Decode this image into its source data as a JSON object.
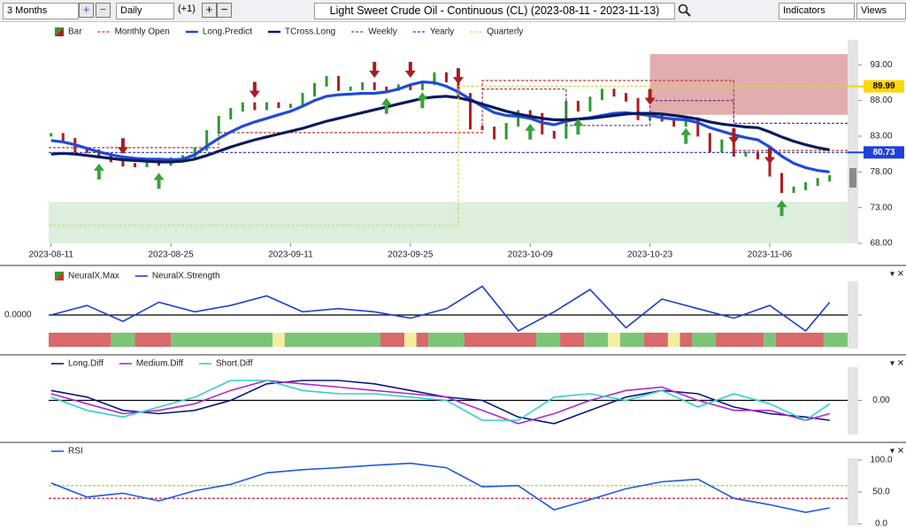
{
  "toolbar": {
    "range": "3 Months",
    "interval": "Daily",
    "offset": "(+1)",
    "title": "Light Sweet Crude Oil - Continuous (CL) (2023-08-11 - 2023-11-13)",
    "indicators": "Indicators",
    "views": "Views"
  },
  "chart_data": [
    {
      "type": "price",
      "ytick_side": "right",
      "grid": false,
      "x": [
        0,
        1,
        2,
        3,
        4,
        5,
        6,
        7,
        8,
        9,
        10,
        11,
        12,
        13,
        14,
        15,
        16,
        17,
        18,
        19,
        20,
        21,
        22,
        23,
        24,
        25,
        26,
        27,
        28,
        29,
        30,
        31,
        32,
        33,
        34,
        35,
        36,
        37,
        38,
        39,
        40,
        41,
        42,
        43,
        44,
        45,
        46,
        47,
        48,
        49,
        50,
        51,
        52,
        53,
        54,
        55,
        56,
        57,
        58,
        59,
        60,
        61,
        62,
        63,
        64,
        65
      ],
      "xlim": [
        -0.2,
        66.5
      ],
      "xticks": [
        {
          "value": 0,
          "label": "2023-08-11"
        },
        {
          "value": 10,
          "label": "2023-08-25"
        },
        {
          "value": 20,
          "label": "2023-09-11"
        },
        {
          "value": 30,
          "label": "2023-09-25"
        },
        {
          "value": 40,
          "label": "2023-10-09"
        },
        {
          "value": 50,
          "label": "2023-10-23"
        },
        {
          "value": 60,
          "label": "2023-11-06"
        }
      ],
      "ylim": [
        68,
        96.5
      ],
      "yticks": [
        {
          "value": 93,
          "label": "93.00"
        },
        {
          "value": 88,
          "label": "88.00"
        },
        {
          "value": 83,
          "label": "83.00"
        },
        {
          "value": 78,
          "label": "78.00"
        },
        {
          "value": 73,
          "label": "73.00"
        },
        {
          "value": 68,
          "label": "68.00"
        }
      ],
      "zones": [
        {
          "x": [
            50,
            66.5
          ],
          "y": [
            86,
            94.5
          ],
          "color": "#c96a6a"
        },
        {
          "x": [
            -0.2,
            66.5
          ],
          "y": [
            68,
            73.8
          ],
          "color": "#bfe0bf"
        }
      ],
      "series": [
        {
          "name": "Bar",
          "style": "bars",
          "up_color": "#2e9a2e",
          "down_color": "#b01c1c",
          "values": [
            83.2,
            82.5,
            81.0,
            80.9,
            80.4,
            79.6,
            79.0,
            78.9,
            79.6,
            79.1,
            79.8,
            80.1,
            81.2,
            83.6,
            85.6,
            86.7,
            87.5,
            86.9,
            87.5,
            87.2,
            87.3,
            88.8,
            90.2,
            91.2,
            89.6,
            89.7,
            90.3,
            89.7,
            89.6,
            90.0,
            89.7,
            90.4,
            91.7,
            90.8,
            88.8,
            84.2,
            84.1,
            82.8,
            84.6,
            86.4,
            86.0,
            83.5,
            82.9,
            87.7,
            86.7,
            88.3,
            89.4,
            88.8,
            88.1,
            85.5,
            85.9,
            85.3,
            84.6,
            85.4,
            83.2,
            81.0,
            82.3,
            80.4,
            80.6,
            80.0,
            77.6,
            75.3,
            75.7,
            76.3,
            76.9,
            77.3
          ]
        },
        {
          "name": "Monthly Open",
          "style": "dashed",
          "color": "#c0392b",
          "x": [
            -0.2,
            14,
            14,
            36,
            36,
            57,
            57,
            66.5
          ],
          "values": [
            81.4,
            81.4,
            83.5,
            83.5,
            90.8,
            90.8,
            81.0,
            81.0
          ]
        },
        {
          "name": "Long.Predict",
          "style": "thick",
          "color": "#1e4bd8",
          "values": [
            82.4,
            82.2,
            81.8,
            81.3,
            80.8,
            80.4,
            80.1,
            79.9,
            79.8,
            79.8,
            79.7,
            79.8,
            80.4,
            81.6,
            82.7,
            83.6,
            84.4,
            85.0,
            85.5,
            86.0,
            86.5,
            87.2,
            88.0,
            88.6,
            88.8,
            88.9,
            89.0,
            89.0,
            89.2,
            89.6,
            90.2,
            90.6,
            90.5,
            90.0,
            89.2,
            88.2,
            87.2,
            86.3,
            85.9,
            85.8,
            85.5,
            84.9,
            84.6,
            85.1,
            85.4,
            85.6,
            85.9,
            86.2,
            86.3,
            86.1,
            85.9,
            85.6,
            85.4,
            85.3,
            84.9,
            84.2,
            83.7,
            83.2,
            82.8,
            82.5,
            81.5,
            80.2,
            79.2,
            78.6,
            78.2,
            78.0
          ]
        },
        {
          "name": "TCross.Long",
          "style": "thick",
          "color": "#0a1a5c",
          "values": [
            80.5,
            80.6,
            80.5,
            80.3,
            80.1,
            79.9,
            79.7,
            79.6,
            79.5,
            79.4,
            79.4,
            79.5,
            79.8,
            80.3,
            80.9,
            81.5,
            82.0,
            82.5,
            82.9,
            83.3,
            83.7,
            84.1,
            84.6,
            85.1,
            85.5,
            85.9,
            86.3,
            86.7,
            87.1,
            87.5,
            87.9,
            88.3,
            88.5,
            88.6,
            88.4,
            88.0,
            87.5,
            87.0,
            86.5,
            86.1,
            85.8,
            85.5,
            85.3,
            85.3,
            85.4,
            85.5,
            85.7,
            85.9,
            86.1,
            86.2,
            86.2,
            86.1,
            85.9,
            85.7,
            85.4,
            85.0,
            84.7,
            84.5,
            84.3,
            84.2,
            83.6,
            82.9,
            82.3,
            81.8,
            81.4,
            81.1
          ]
        },
        {
          "name": "Weekly",
          "style": "dashed",
          "color": "#7b2c7b",
          "x": [
            36,
            43,
            43,
            50,
            50,
            57,
            57,
            66.5
          ],
          "values": [
            89.6,
            89.6,
            84.5,
            84.5,
            88.0,
            88.0,
            84.8,
            84.8
          ]
        },
        {
          "name": "Yearly",
          "style": "dashed",
          "color": "#2233cc",
          "x": [
            -0.2,
            66.5
          ],
          "values": [
            80.73,
            80.73
          ]
        },
        {
          "name": "Quarterly",
          "style": "dashed",
          "color": "#d6d64a",
          "x": [
            -0.2,
            34,
            34,
            66.5
          ],
          "values": [
            70.5,
            70.5,
            89.99,
            89.99
          ]
        }
      ],
      "sell_signals": [
        6,
        17,
        27,
        30,
        34,
        50,
        57,
        60
      ],
      "buy_signals": [
        4,
        9,
        28,
        31,
        40,
        44,
        53,
        61
      ],
      "price_labels": [
        {
          "value": 89.99,
          "color": "#ffd700",
          "text_color": "#000000"
        },
        {
          "value": 80.73,
          "color": "#2040e0",
          "text_color": "#ffffff"
        }
      ]
    },
    {
      "type": "oscillator",
      "ytick_side": "left",
      "grid": true,
      "x": [
        0,
        3,
        6,
        9,
        12,
        15,
        18,
        21,
        24,
        27,
        30,
        33,
        36,
        39,
        42,
        45,
        48,
        51,
        54,
        57,
        60,
        63,
        65
      ],
      "xlim": [
        -0.2,
        66.5
      ],
      "ylim": [
        -1,
        1
      ],
      "yticks": [
        {
          "value": 0,
          "label": "0.0000"
        }
      ],
      "series": [
        {
          "name": "NeuralX.Max",
          "style": "strip",
          "segments": [
            {
              "from": -0.2,
              "to": 5,
              "color": "#d9696b"
            },
            {
              "from": 5,
              "to": 7,
              "color": "#7cc576"
            },
            {
              "from": 7,
              "to": 10,
              "color": "#d9696b"
            },
            {
              "from": 10,
              "to": 18.5,
              "color": "#7cc576"
            },
            {
              "from": 18.5,
              "to": 19.5,
              "color": "#f3eea0"
            },
            {
              "from": 19.5,
              "to": 27.5,
              "color": "#7cc576"
            },
            {
              "from": 27.5,
              "to": 29.5,
              "color": "#d9696b"
            },
            {
              "from": 29.5,
              "to": 30.5,
              "color": "#f3eea0"
            },
            {
              "from": 30.5,
              "to": 31.5,
              "color": "#d9696b"
            },
            {
              "from": 31.5,
              "to": 34.5,
              "color": "#7cc576"
            },
            {
              "from": 34.5,
              "to": 40.5,
              "color": "#d9696b"
            },
            {
              "from": 40.5,
              "to": 42.5,
              "color": "#7cc576"
            },
            {
              "from": 42.5,
              "to": 44.5,
              "color": "#d9696b"
            },
            {
              "from": 44.5,
              "to": 46.5,
              "color": "#7cc576"
            },
            {
              "from": 46.5,
              "to": 47.5,
              "color": "#f3eea0"
            },
            {
              "from": 47.5,
              "to": 49.5,
              "color": "#7cc576"
            },
            {
              "from": 49.5,
              "to": 51.5,
              "color": "#d9696b"
            },
            {
              "from": 51.5,
              "to": 52.5,
              "color": "#f3eea0"
            },
            {
              "from": 52.5,
              "to": 53.5,
              "color": "#d9696b"
            },
            {
              "from": 53.5,
              "to": 55.5,
              "color": "#7cc576"
            },
            {
              "from": 55.5,
              "to": 59.5,
              "color": "#d9696b"
            },
            {
              "from": 59.5,
              "to": 60.5,
              "color": "#7cc576"
            },
            {
              "from": 60.5,
              "to": 64.5,
              "color": "#d9696b"
            },
            {
              "from": 64.5,
              "to": 66.5,
              "color": "#7cc576"
            }
          ]
        },
        {
          "name": "NeuralX.Strength",
          "style": "solid",
          "color": "#1e3fd0",
          "values": [
            0,
            0.3,
            -0.2,
            0.4,
            0.1,
            0.3,
            0.6,
            0.1,
            0.2,
            0.1,
            -0.1,
            0.2,
            0.9,
            -0.5,
            0.1,
            0.8,
            -0.4,
            0.5,
            0.2,
            -0.1,
            0.3,
            -0.5,
            0.4
          ]
        }
      ]
    },
    {
      "type": "oscillator",
      "ytick_side": "right",
      "grid": true,
      "x": [
        0,
        3,
        6,
        9,
        12,
        15,
        18,
        21,
        24,
        27,
        30,
        33,
        36,
        39,
        42,
        45,
        48,
        51,
        54,
        57,
        60,
        63,
        65
      ],
      "xlim": [
        -0.2,
        66.5
      ],
      "ylim": [
        -1,
        1
      ],
      "yticks": [
        {
          "value": 0,
          "label": "0.00"
        }
      ],
      "series": [
        {
          "name": "Long.Diff",
          "style": "solid",
          "color": "#0a1a7c",
          "values": [
            0.3,
            0.1,
            -0.3,
            -0.4,
            -0.3,
            0.0,
            0.5,
            0.6,
            0.6,
            0.5,
            0.3,
            0.1,
            0.0,
            -0.5,
            -0.7,
            -0.3,
            0.1,
            0.3,
            0.2,
            -0.2,
            -0.4,
            -0.5,
            -0.6
          ]
        },
        {
          "name": "Medium.Diff",
          "style": "solid",
          "color": "#b02ad0",
          "values": [
            0.2,
            -0.1,
            -0.4,
            -0.3,
            -0.1,
            0.3,
            0.6,
            0.5,
            0.4,
            0.3,
            0.2,
            0.1,
            -0.3,
            -0.7,
            -0.4,
            0.0,
            0.3,
            0.4,
            0.0,
            -0.3,
            -0.3,
            -0.6,
            -0.4
          ]
        },
        {
          "name": "Short.Diff",
          "style": "solid",
          "color": "#33d0c8",
          "values": [
            0.1,
            -0.3,
            -0.5,
            -0.2,
            0.1,
            0.6,
            0.6,
            0.3,
            0.2,
            0.2,
            0.1,
            0.0,
            -0.6,
            -0.6,
            0.1,
            0.2,
            0.0,
            0.3,
            -0.2,
            0.2,
            -0.1,
            -0.6,
            -0.1
          ]
        }
      ]
    },
    {
      "type": "oscillator",
      "ytick_side": "right",
      "grid": false,
      "x": [
        0,
        3,
        6,
        9,
        12,
        15,
        18,
        21,
        24,
        27,
        30,
        33,
        36,
        39,
        42,
        45,
        48,
        51,
        54,
        57,
        60,
        63,
        65
      ],
      "xlim": [
        -0.2,
        66.5
      ],
      "ylim": [
        0,
        100
      ],
      "yticks": [
        {
          "value": 100,
          "label": "100.0"
        },
        {
          "value": 50,
          "label": "50.0"
        },
        {
          "value": 0,
          "label": "0.0"
        }
      ],
      "levels": [
        {
          "value": 60,
          "color": "#8ad42a"
        },
        {
          "value": 40,
          "color": "#d0021b"
        }
      ],
      "series": [
        {
          "name": "RSI",
          "style": "solid",
          "color": "#1e5ae0",
          "values": [
            64,
            42,
            48,
            36,
            52,
            62,
            80,
            85,
            88,
            92,
            95,
            88,
            58,
            60,
            22,
            38,
            55,
            66,
            70,
            40,
            30,
            18,
            25
          ]
        }
      ]
    }
  ]
}
